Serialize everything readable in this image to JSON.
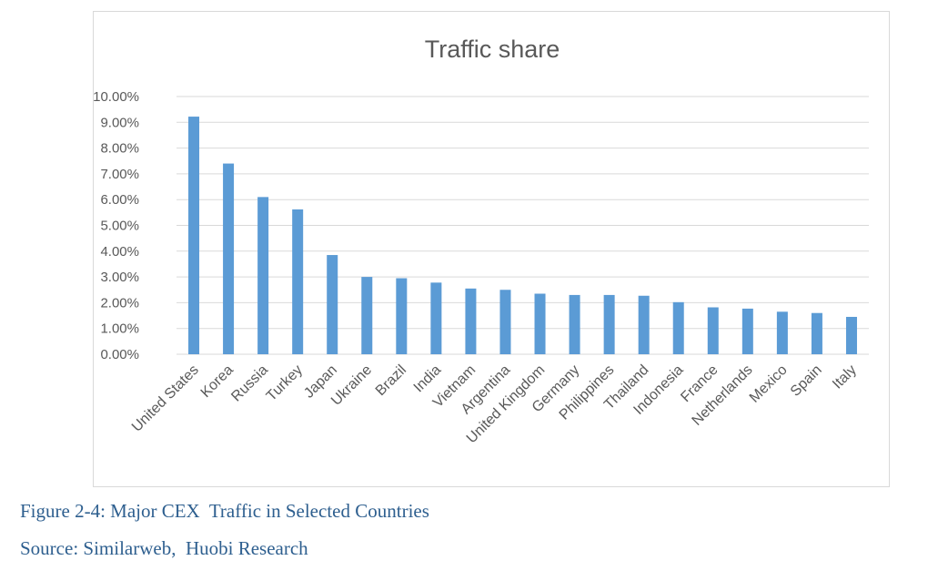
{
  "chart_data": {
    "type": "bar",
    "title": "Traffic share",
    "xlabel": "",
    "ylabel": "",
    "ylim": [
      0,
      10
    ],
    "ytick_values": [
      0,
      1,
      2,
      3,
      4,
      5,
      6,
      7,
      8,
      9,
      10
    ],
    "ytick_labels": [
      "0.00%",
      "1.00%",
      "2.00%",
      "3.00%",
      "4.00%",
      "5.00%",
      "6.00%",
      "7.00%",
      "8.00%",
      "9.00%",
      "10.00%"
    ],
    "categories": [
      "United States",
      "Korea",
      "Russia",
      "Turkey",
      "Japan",
      "Ukraine",
      "Brazil",
      "India",
      "Vietnam",
      "Argentina",
      "United Kingdom",
      "Germany",
      "Philippines",
      "Thailand",
      "Indonesia",
      "France",
      "Netherlands",
      "Mexico",
      "Spain",
      "Italy"
    ],
    "values": [
      9.22,
      7.4,
      6.1,
      5.62,
      3.85,
      3.0,
      2.95,
      2.78,
      2.55,
      2.5,
      2.35,
      2.3,
      2.3,
      2.27,
      2.02,
      1.82,
      1.77,
      1.65,
      1.6,
      1.45
    ],
    "bar_color": "#5b9bd5",
    "grid": true,
    "legend": "none"
  },
  "caption": {
    "figure": "Figure 2-4: Major CEX  Traffic in Selected Countries",
    "source": "Source: Similarweb,  Huobi Research"
  }
}
